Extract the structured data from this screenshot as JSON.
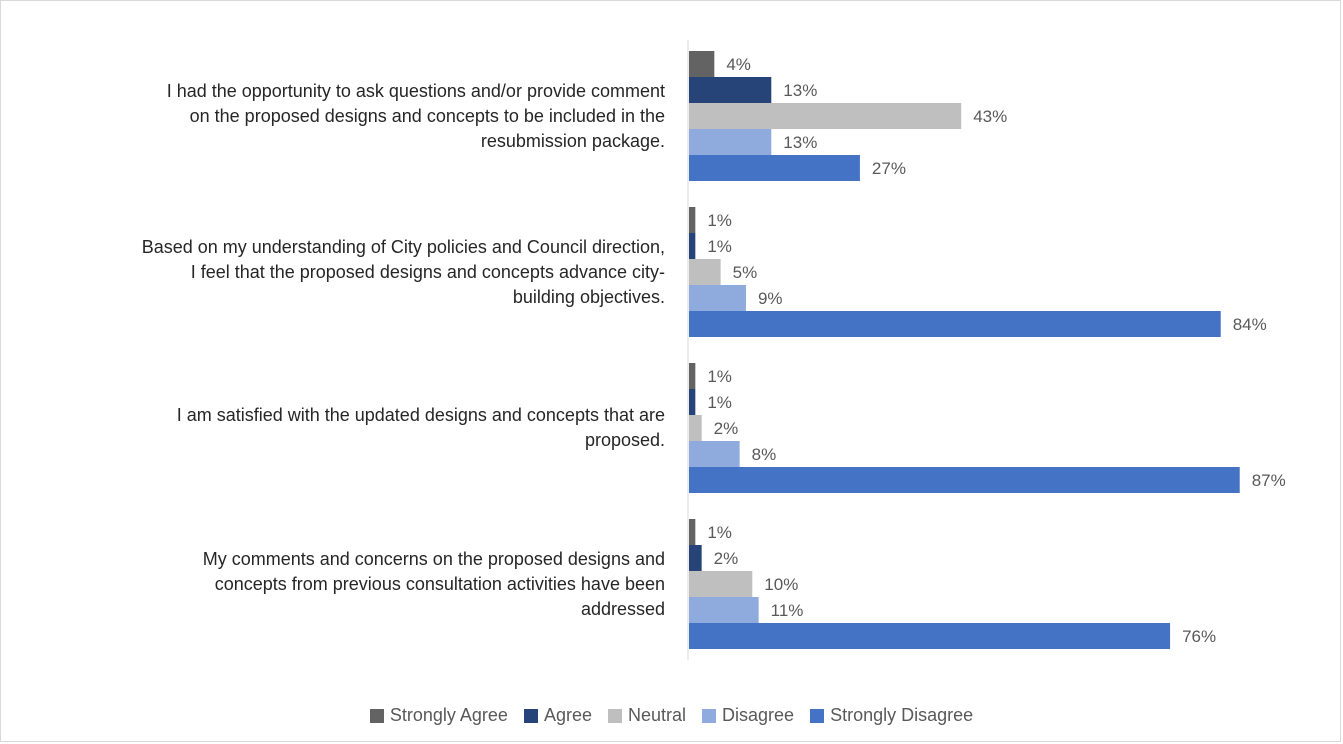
{
  "chart_data": {
    "type": "bar",
    "orientation": "horizontal",
    "categories": [
      "I had the opportunity to ask questions and/or provide comment on the proposed designs and concepts to be included in the resubmission package.",
      "Based on my understanding of City policies and Council direction, I feel that the proposed designs and concepts advance city-building objectives.",
      "I am satisfied with the updated designs and concepts that are proposed.",
      "My comments and concerns on the proposed designs and concepts from previous consultation activities have been addressed"
    ],
    "category_lines": [
      [
        "I had the opportunity to ask questions and/or provide comment",
        "on the proposed designs and concepts to be included in the",
        "resubmission package."
      ],
      [
        "Based on my understanding of City policies and Council direction,",
        "I feel that the proposed designs and concepts advance city-",
        "building objectives."
      ],
      [
        "I am satisfied with the updated designs and concepts that are",
        "proposed."
      ],
      [
        "My comments and concerns on the proposed designs and",
        "concepts from previous consultation activities have been",
        "addressed"
      ]
    ],
    "series": [
      {
        "name": "Strongly Agree",
        "color": "#636363",
        "values": [
          4,
          1,
          1,
          1
        ]
      },
      {
        "name": "Agree",
        "color": "#264478",
        "values": [
          13,
          1,
          1,
          2
        ]
      },
      {
        "name": "Neutral",
        "color": "#bfbfbf",
        "values": [
          43,
          5,
          2,
          10
        ]
      },
      {
        "name": "Disagree",
        "color": "#8faadc",
        "values": [
          13,
          9,
          8,
          11
        ]
      },
      {
        "name": "Strongly Disagree",
        "color": "#4472c4",
        "values": [
          27,
          84,
          87,
          76
        ]
      }
    ],
    "value_suffix": "%",
    "xlim": [
      0,
      100
    ],
    "legend_position": "bottom",
    "grid": false
  }
}
